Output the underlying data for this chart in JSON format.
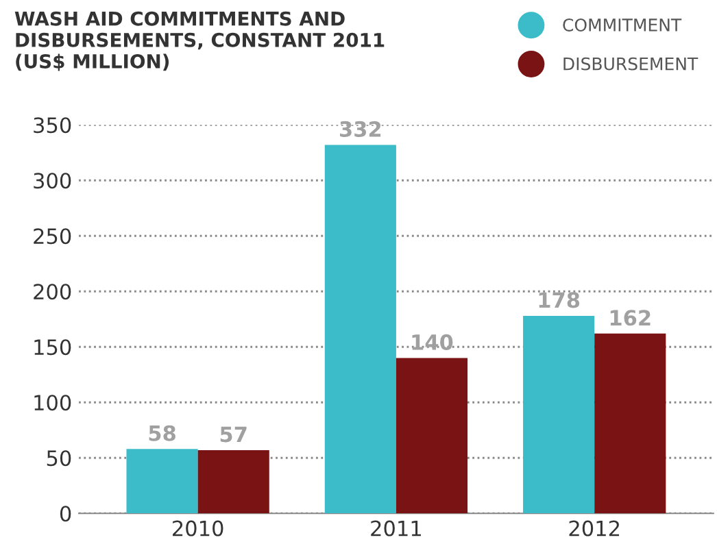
{
  "chart_data": {
    "type": "bar",
    "title": "WASH AID COMMITMENTS AND\nDISBURSEMENTS, CONSTANT 2011\n(US$ MILLION)",
    "categories": [
      "2010",
      "2011",
      "2012"
    ],
    "series": [
      {
        "name": "COMMITMENT",
        "color": "#3bbcc8",
        "values": [
          58,
          332,
          178
        ]
      },
      {
        "name": "DISBURSEMENT",
        "color": "#7a1414",
        "values": [
          57,
          140,
          162
        ]
      }
    ],
    "ylim": [
      0,
      350
    ],
    "yticks": [
      0,
      50,
      100,
      150,
      200,
      250,
      300,
      350
    ],
    "grid": "y",
    "legend": "top right",
    "data_labels": true
  }
}
